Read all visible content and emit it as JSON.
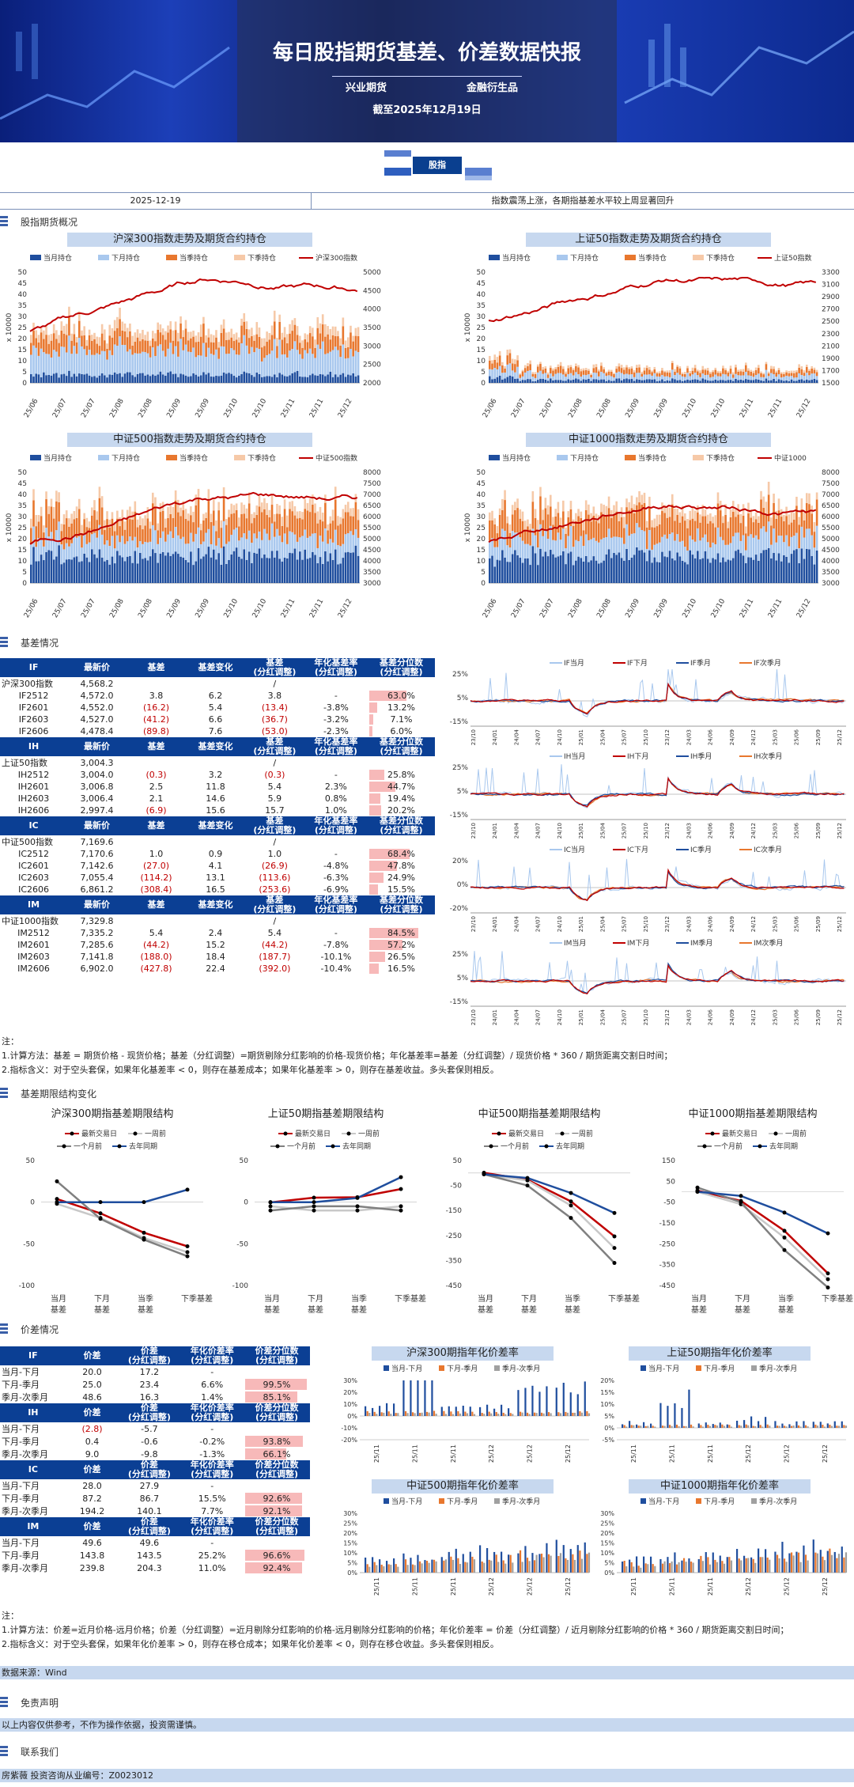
{
  "header": {
    "title": "每日股指期货基差、价差数据快报",
    "company": "兴业期货",
    "dept": "金融衍生品",
    "date": "截至2025年12月19日",
    "logo_label": "股指"
  },
  "infobar": {
    "date": "2025-12-19",
    "summary": "指数震荡上涨，各期指基差水平较上周显著回升"
  },
  "sections": {
    "overview": "股指期货概况",
    "basis": "基差情况",
    "term": "基差期限结构变化",
    "spread": "价差情况",
    "disclaimer": "免责声明",
    "contact": "联系我们"
  },
  "colors": {
    "current": "#1f4e9e",
    "next": "#a9c8ee",
    "quarter": "#e8772e",
    "nextq": "#f6c9a8",
    "index": "#c00000"
  },
  "overview_charts": [
    {
      "title": "沪深300指数走势及期货合约持仓",
      "legend": [
        "当月持仓",
        "下月持仓",
        "当季持仓",
        "下季持仓",
        "沪深300指数"
      ],
      "ylabel": "x 10000",
      "yleft": [
        "0",
        "5",
        "10",
        "15",
        "20",
        "25",
        "30",
        "35",
        "40",
        "45",
        "50"
      ],
      "yright": [
        "2000",
        "2500",
        "3000",
        "3500",
        "4000",
        "4500",
        "5000"
      ],
      "xticks": [
        "25/06",
        "25/07",
        "25/07",
        "25/08",
        "25/08",
        "25/09",
        "25/09",
        "25/10",
        "25/10",
        "25/11",
        "25/11",
        "25/12"
      ]
    },
    {
      "title": "上证50指数走势及期货合约持仓",
      "legend": [
        "当月持仓",
        "下月持仓",
        "当季持仓",
        "下季持仓",
        "上证50指数"
      ],
      "ylabel": "x 10000",
      "yleft": [
        "0",
        "5",
        "10",
        "15",
        "20",
        "25",
        "30",
        "35",
        "40",
        "45",
        "50"
      ],
      "yright": [
        "1500",
        "1700",
        "1900",
        "2100",
        "2300",
        "2500",
        "2700",
        "2900",
        "3100",
        "3300"
      ],
      "xticks": [
        "25/06",
        "25/07",
        "25/07",
        "25/08",
        "25/08",
        "25/09",
        "25/09",
        "25/10",
        "25/10",
        "25/11",
        "25/11",
        "25/12"
      ]
    },
    {
      "title": "中证500指数走势及期货合约持仓",
      "legend": [
        "当月持仓",
        "下月持仓",
        "当季持仓",
        "下季持仓",
        "中证500指数"
      ],
      "ylabel": "x 10000",
      "yleft": [
        "0",
        "5",
        "10",
        "15",
        "20",
        "25",
        "30",
        "35",
        "40",
        "45",
        "50"
      ],
      "yright": [
        "3000",
        "3500",
        "4000",
        "4500",
        "5000",
        "5500",
        "6000",
        "6500",
        "7000",
        "7500",
        "8000"
      ],
      "xticks": [
        "25/06",
        "25/07",
        "25/07",
        "25/08",
        "25/08",
        "25/09",
        "25/09",
        "25/10",
        "25/10",
        "25/11",
        "25/11",
        "25/12"
      ]
    },
    {
      "title": "中证1000指数走势及期货合约持仓",
      "legend": [
        "当月持仓",
        "下月持仓",
        "当季持仓",
        "下季持仓",
        "中证1000"
      ],
      "ylabel": "x 10000",
      "yleft": [
        "0",
        "5",
        "10",
        "15",
        "20",
        "25",
        "30",
        "35",
        "40",
        "45",
        "50"
      ],
      "yright": [
        "3000",
        "3500",
        "4000",
        "4500",
        "5000",
        "5500",
        "6000",
        "6500",
        "7000",
        "7500",
        "8000"
      ],
      "xticks": [
        "25/06",
        "25/07",
        "25/07",
        "25/08",
        "25/08",
        "25/09",
        "25/09",
        "25/10",
        "25/10",
        "25/11",
        "25/11",
        "25/12"
      ]
    }
  ],
  "basis_tables": [
    {
      "code": "IF",
      "headers": [
        "最新价",
        "基差",
        "基差变化",
        "基差\n(分红调整)",
        "年化基差率\n(分红调整)",
        "基差分位数\n(分红调整)"
      ],
      "index_row": {
        "name": "沪深300指数",
        "price": "4,568.2",
        "slash": "/"
      },
      "rows": [
        {
          "name": "IF2512",
          "price": "4,572.0",
          "basis": "3.8",
          "chg": "6.2",
          "adj": "3.8",
          "ann": "-",
          "pct": "63.0%",
          "neg": false,
          "p": 0.63
        },
        {
          "name": "IF2601",
          "price": "4,552.0",
          "basis": "(16.2)",
          "chg": "5.4",
          "adj": "(13.4)",
          "ann": "-3.8%",
          "pct": "13.2%",
          "neg": true,
          "p": 0.132
        },
        {
          "name": "IF2603",
          "price": "4,527.0",
          "basis": "(41.2)",
          "chg": "6.6",
          "adj": "(36.7)",
          "ann": "-3.2%",
          "pct": "7.1%",
          "neg": true,
          "p": 0.071
        },
        {
          "name": "IF2606",
          "price": "4,478.4",
          "basis": "(89.8)",
          "chg": "7.6",
          "adj": "(53.0)",
          "ann": "-2.3%",
          "pct": "6.0%",
          "neg": true,
          "p": 0.06
        }
      ]
    },
    {
      "code": "IH",
      "headers": [
        "最新价",
        "基差",
        "基差变化",
        "基差\n(分红调整)",
        "年化基差率\n(分红调整)",
        "基差分位数\n(分红调整)"
      ],
      "index_row": {
        "name": "上证50指数",
        "price": "3,004.3",
        "slash": "/"
      },
      "rows": [
        {
          "name": "IH2512",
          "price": "3,004.0",
          "basis": "(0.3)",
          "chg": "3.2",
          "adj": "(0.3)",
          "ann": "-",
          "pct": "25.8%",
          "neg": true,
          "p": 0.258
        },
        {
          "name": "IH2601",
          "price": "3,006.8",
          "basis": "2.5",
          "chg": "11.8",
          "adj": "5.4",
          "ann": "2.3%",
          "pct": "44.7%",
          "neg": false,
          "p": 0.447
        },
        {
          "name": "IH2603",
          "price": "3,006.4",
          "basis": "2.1",
          "chg": "14.6",
          "adj": "5.9",
          "ann": "0.8%",
          "pct": "19.4%",
          "neg": false,
          "p": 0.194
        },
        {
          "name": "IH2606",
          "price": "2,997.4",
          "basis": "(6.9)",
          "chg": "15.6",
          "adj": "15.7",
          "ann": "1.0%",
          "pct": "20.2%",
          "neg": true,
          "p": 0.202
        }
      ]
    },
    {
      "code": "IC",
      "headers": [
        "最新价",
        "基差",
        "基差变化",
        "基差\n(分红调整)",
        "年化基差率\n(分红调整)",
        "基差分位数\n(分红调整)"
      ],
      "index_row": {
        "name": "中证500指数",
        "price": "7,169.6",
        "slash": "/"
      },
      "rows": [
        {
          "name": "IC2512",
          "price": "7,170.6",
          "basis": "1.0",
          "chg": "0.9",
          "adj": "1.0",
          "ann": "-",
          "pct": "68.4%",
          "neg": false,
          "p": 0.684
        },
        {
          "name": "IC2601",
          "price": "7,142.6",
          "basis": "(27.0)",
          "chg": "4.1",
          "adj": "(26.9)",
          "ann": "-4.8%",
          "pct": "47.8%",
          "neg": true,
          "p": 0.478
        },
        {
          "name": "IC2603",
          "price": "7,055.4",
          "basis": "(114.2)",
          "chg": "13.1",
          "adj": "(113.6)",
          "ann": "-6.3%",
          "pct": "24.9%",
          "neg": true,
          "p": 0.249
        },
        {
          "name": "IC2606",
          "price": "6,861.2",
          "basis": "(308.4)",
          "chg": "16.5",
          "adj": "(253.6)",
          "ann": "-6.9%",
          "pct": "15.5%",
          "neg": true,
          "p": 0.155
        }
      ]
    },
    {
      "code": "IM",
      "headers": [
        "最新价",
        "基差",
        "基差变化",
        "基差\n(分红调整)",
        "年化基差率\n(分红调整)",
        "基差分位数\n(分红调整)"
      ],
      "index_row": {
        "name": "中证1000指数",
        "price": "7,329.8",
        "slash": "/"
      },
      "rows": [
        {
          "name": "IM2512",
          "price": "7,335.2",
          "basis": "5.4",
          "chg": "2.4",
          "adj": "5.4",
          "ann": "-",
          "pct": "84.5%",
          "neg": false,
          "p": 0.845
        },
        {
          "name": "IM2601",
          "price": "7,285.6",
          "basis": "(44.2)",
          "chg": "15.2",
          "adj": "(44.2)",
          "ann": "-7.8%",
          "pct": "57.2%",
          "neg": true,
          "p": 0.572
        },
        {
          "name": "IM2603",
          "price": "7,141.8",
          "basis": "(188.0)",
          "chg": "18.4",
          "adj": "(187.7)",
          "ann": "-10.1%",
          "pct": "26.5%",
          "neg": true,
          "p": 0.265
        },
        {
          "name": "IM2606",
          "price": "6,902.0",
          "basis": "(427.8)",
          "chg": "22.4",
          "adj": "(392.0)",
          "ann": "-10.4%",
          "pct": "16.5%",
          "neg": true,
          "p": 0.165
        }
      ]
    }
  ],
  "basis_mini_charts": [
    {
      "legend": [
        "IF当月",
        "IF下月",
        "IF季月",
        "IF次季月"
      ],
      "yticks": [
        "25%",
        "5%",
        "-15%"
      ]
    },
    {
      "legend": [
        "IH当月",
        "IH下月",
        "IH季月",
        "IH次季月"
      ],
      "yticks": [
        "25%",
        "5%",
        "-15%"
      ]
    },
    {
      "legend": [
        "IC当月",
        "IC下月",
        "IC季月",
        "IC次季月"
      ],
      "yticks": [
        "20%",
        "0%",
        "-20%"
      ]
    },
    {
      "legend": [
        "IM当月",
        "IM下月",
        "IM季月",
        "IM次季月"
      ],
      "yticks": [
        "25%",
        "5%",
        "-15%"
      ]
    }
  ],
  "mini_xticks": [
    "23/10",
    "24/01",
    "24/04",
    "24/07",
    "24/10",
    "25/01",
    "25/04",
    "25/07",
    "25/10",
    "23/12",
    "24/03",
    "24/06",
    "24/09",
    "24/12",
    "25/03",
    "25/06",
    "25/09",
    "25/12"
  ],
  "basis_notes": [
    "注：",
    "1.计算方法：基差 = 期货价格 - 现货价格；基差（分红调整）=期货剔除分红影响的价格-现货价格；年化基差率=基差（分红调整）/ 现货价格 * 360 / 期货距离交割日时间；",
    "2.指标含义：对于空头套保，如果年化基差率 < 0，则存在基差成本；如果年化基差率 > 0，则存在基差收益。多头套保则相反。"
  ],
  "term_charts": [
    {
      "title": "沪深300期指基差期限结构",
      "legend": [
        "最新交易日",
        "一周前",
        "一个月前",
        "去年同期"
      ],
      "yticks": [
        "50",
        "0",
        "-50",
        "-100"
      ],
      "xlabels": [
        "当月\n基差",
        "下月\n基差",
        "当季\n基差",
        "下季基差"
      ]
    },
    {
      "title": "上证50期指基差期限结构",
      "legend": [
        "最新交易日",
        "一周前",
        "一个月前",
        "去年同期"
      ],
      "yticks": [
        "50",
        "0",
        "-50",
        "-100"
      ],
      "xlabels": [
        "当月\n基差",
        "下月\n基差",
        "当季\n基差",
        "下季基差"
      ]
    },
    {
      "title": "中证500期指基差期限结构",
      "legend": [
        "最新交易日",
        "一周前",
        "一个月前",
        "去年同期"
      ],
      "yticks": [
        "50",
        "-50",
        "-150",
        "-250",
        "-350",
        "-450"
      ],
      "xlabels": [
        "当月\n基差",
        "下月\n基差",
        "当季\n基差",
        "下季基差"
      ]
    },
    {
      "title": "中证1000期指基差期限结构",
      "legend": [
        "最新交易日",
        "一周前",
        "一个月前",
        "去年同期"
      ],
      "yticks": [
        "150",
        "50",
        "-50",
        "-150",
        "-250",
        "-350",
        "-450"
      ],
      "xlabels": [
        "当月\n基差",
        "下月\n基差",
        "当季\n基差",
        "下季基差"
      ]
    }
  ],
  "term_data": [
    {
      "latest": [
        3.8,
        -13.4,
        -36.7,
        -53.0
      ],
      "week": [
        -2,
        -19,
        -43,
        -60
      ],
      "month": [
        25,
        -20,
        -45,
        -65
      ],
      "lastyear": [
        0,
        0,
        0,
        15
      ]
    },
    {
      "latest": [
        -0.3,
        5.4,
        5.9,
        15.7
      ],
      "week": [
        -5,
        -10,
        -10,
        -5
      ],
      "month": [
        -10,
        -5,
        -5,
        -10
      ],
      "lastyear": [
        0,
        0,
        5,
        30
      ]
    },
    {
      "latest": [
        1.0,
        -26.9,
        -113.6,
        -253.6
      ],
      "week": [
        -5,
        -30,
        -130,
        -300
      ],
      "month": [
        -5,
        -50,
        -180,
        -360
      ],
      "lastyear": [
        -5,
        -20,
        -80,
        -160
      ]
    },
    {
      "latest": [
        5.4,
        -44.2,
        -187.7,
        -392.0
      ],
      "week": [
        0,
        -60,
        -220,
        -420
      ],
      "month": [
        20,
        -50,
        -280,
        -460
      ],
      "lastyear": [
        0,
        -20,
        -100,
        -200
      ]
    }
  ],
  "spread_tables": [
    {
      "code": "IF",
      "headers": [
        "价差",
        "价差\n(分红调整)",
        "年化价差率\n(分红调整)",
        "价差分位数\n(分红调整)"
      ],
      "rows": [
        {
          "name": "当月-下月",
          "v": "20.0",
          "adj": "17.2",
          "ann": "-",
          "pct": "",
          "neg": false,
          "p": 0
        },
        {
          "name": "下月-季月",
          "v": "25.0",
          "adj": "23.4",
          "ann": "6.6%",
          "pct": "99.5%",
          "neg": false,
          "p": 0.995
        },
        {
          "name": "季月-次季月",
          "v": "48.6",
          "adj": "16.3",
          "ann": "1.4%",
          "pct": "85.1%",
          "neg": false,
          "p": 0.851
        }
      ]
    },
    {
      "code": "IH",
      "headers": [
        "价差",
        "价差\n(分红调整)",
        "年化价差率\n(分红调整)",
        "价差分位数\n(分红调整)"
      ],
      "rows": [
        {
          "name": "当月-下月",
          "v": "(2.8)",
          "adj": "-5.7",
          "ann": "-",
          "pct": "",
          "neg": true,
          "p": 0
        },
        {
          "name": "下月-季月",
          "v": "0.4",
          "adj": "-0.6",
          "ann": "-0.2%",
          "pct": "93.8%",
          "neg": false,
          "p": 0.938
        },
        {
          "name": "季月-次季月",
          "v": "9.0",
          "adj": "-9.8",
          "ann": "-1.3%",
          "pct": "66.1%",
          "neg": false,
          "p": 0.661
        }
      ]
    },
    {
      "code": "IC",
      "headers": [
        "价差",
        "价差\n(分红调整)",
        "年化价差率\n(分红调整)",
        "价差分位数\n(分红调整)"
      ],
      "rows": [
        {
          "name": "当月-下月",
          "v": "28.0",
          "adj": "27.9",
          "ann": "-",
          "pct": "",
          "neg": false,
          "p": 0
        },
        {
          "name": "下月-季月",
          "v": "87.2",
          "adj": "86.7",
          "ann": "15.5%",
          "pct": "92.6%",
          "neg": false,
          "p": 0.926
        },
        {
          "name": "季月-次季月",
          "v": "194.2",
          "adj": "140.1",
          "ann": "7.7%",
          "pct": "92.1%",
          "neg": false,
          "p": 0.921
        }
      ]
    },
    {
      "code": "IM",
      "headers": [
        "价差",
        "价差\n(分红调整)",
        "年化价差率\n(分红调整)",
        "价差分位数\n(分红调整)"
      ],
      "rows": [
        {
          "name": "当月-下月",
          "v": "49.6",
          "adj": "49.6",
          "ann": "-",
          "pct": "",
          "neg": false,
          "p": 0
        },
        {
          "name": "下月-季月",
          "v": "143.8",
          "adj": "143.5",
          "ann": "25.2%",
          "pct": "96.6%",
          "neg": false,
          "p": 0.966
        },
        {
          "name": "季月-次季月",
          "v": "239.8",
          "adj": "204.3",
          "ann": "11.0%",
          "pct": "92.4%",
          "neg": false,
          "p": 0.924
        }
      ]
    }
  ],
  "spread_charts": [
    {
      "title": "沪深300期指年化价差率",
      "legend": [
        "当月-下月",
        "下月-季月",
        "季月-次季月"
      ],
      "yticks": [
        "30%",
        "20%",
        "10%",
        "0%",
        "-10%",
        "-20%"
      ],
      "xticks": [
        "25/11",
        "25/11",
        "25/11",
        "25/12",
        "25/12",
        "25/12"
      ]
    },
    {
      "title": "上证50期指年化价差率",
      "legend": [
        "当月-下月",
        "下月-季月",
        "季月-次季月"
      ],
      "yticks": [
        "20%",
        "15%",
        "10%",
        "5%",
        "0%",
        "-5%"
      ],
      "xticks": [
        "25/11",
        "25/11",
        "25/11",
        "25/12",
        "25/12",
        "25/12"
      ]
    },
    {
      "title": "中证500期指年化价差率",
      "legend": [
        "当月-下月",
        "下月-季月",
        "季月-次季月"
      ],
      "yticks": [
        "30%",
        "25%",
        "20%",
        "15%",
        "10%",
        "5%",
        "0%"
      ],
      "xticks": [
        "25/11",
        "25/11",
        "25/11",
        "25/12",
        "25/12",
        "25/12"
      ]
    },
    {
      "title": "中证1000期指年化价差率",
      "legend": [
        "当月-下月",
        "下月-季月",
        "季月-次季月"
      ],
      "yticks": [
        "30%",
        "25%",
        "20%",
        "15%",
        "10%",
        "5%",
        "0%"
      ],
      "xticks": [
        "25/11",
        "25/11",
        "25/11",
        "25/12",
        "25/12",
        "25/12"
      ]
    }
  ],
  "spread_notes": [
    "注：",
    "1.计算方法：价差=近月价格-远月价格；价差（分红调整）=近月剔除分红影响的价格-远月剔除分红影响的价格；年化价差率 = 价差（分红调整）/ 近月剔除分红影响的价格 * 360 / 期货距离交割日时间；",
    "2.指标含义：对于空头套保，如果年化价差率 > 0，则存在移仓成本；如果年化价差率 < 0，则存在移仓收益。多头套保则相反。"
  ],
  "source": "数据来源：Wind",
  "disclaimer_text": "以上内容仅供参考，不作为操作依据，投资需谨慎。",
  "contact_text": "房紫薇    投资咨询从业编号：Z0023012"
}
